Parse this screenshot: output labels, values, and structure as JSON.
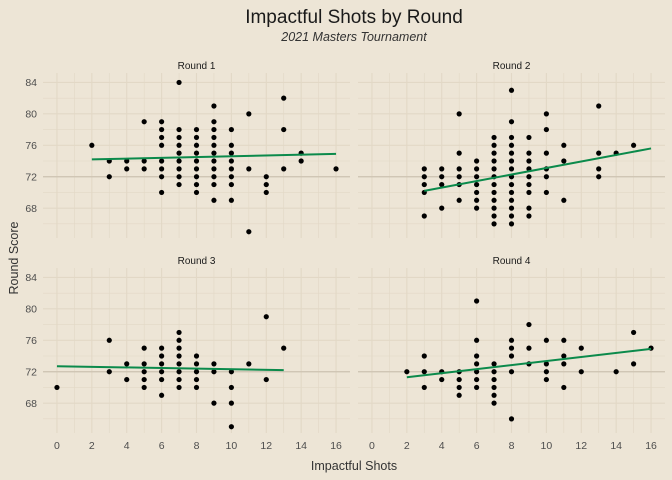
{
  "chart_data": {
    "type": "scatter",
    "title": "Impactful Shots by Round",
    "subtitle": "2021 Masters Tournament",
    "xlabel": "Impactful Shots",
    "ylabel": "Round Score",
    "xlim": [
      -0.8,
      16.8
    ],
    "ylim": [
      64.2,
      85.2
    ],
    "x_ticks": [
      0,
      2,
      4,
      6,
      8,
      10,
      12,
      14,
      16
    ],
    "y_ticks": [
      68,
      72,
      76,
      80,
      84
    ],
    "reference_line_y": 72,
    "grid": true,
    "colors": {
      "background": "#ede5d6",
      "grid": "#e2d8c6",
      "point": "#000000",
      "trend": "#0b8a4b",
      "reference": "#cdc3b2"
    },
    "panels": [
      {
        "name": "Round 1",
        "trend": {
          "x": [
            2,
            16
          ],
          "y": [
            74.2,
            74.9
          ]
        },
        "points": [
          [
            2,
            76
          ],
          [
            3,
            72
          ],
          [
            3,
            74
          ],
          [
            4,
            73
          ],
          [
            4,
            74
          ],
          [
            5,
            79
          ],
          [
            5,
            74
          ],
          [
            5,
            73
          ],
          [
            6,
            79
          ],
          [
            6,
            78
          ],
          [
            6,
            77
          ],
          [
            6,
            76
          ],
          [
            6,
            74
          ],
          [
            6,
            73
          ],
          [
            6,
            72
          ],
          [
            6,
            70
          ],
          [
            7,
            84
          ],
          [
            7,
            78
          ],
          [
            7,
            77
          ],
          [
            7,
            76
          ],
          [
            7,
            75
          ],
          [
            7,
            74
          ],
          [
            7,
            73
          ],
          [
            7,
            72
          ],
          [
            7,
            71
          ],
          [
            8,
            78
          ],
          [
            8,
            77
          ],
          [
            8,
            76
          ],
          [
            8,
            75
          ],
          [
            8,
            74
          ],
          [
            8,
            73
          ],
          [
            8,
            72
          ],
          [
            8,
            71
          ],
          [
            8,
            70
          ],
          [
            9,
            81
          ],
          [
            9,
            79
          ],
          [
            9,
            78
          ],
          [
            9,
            77
          ],
          [
            9,
            76
          ],
          [
            9,
            75
          ],
          [
            9,
            74
          ],
          [
            9,
            73
          ],
          [
            9,
            72
          ],
          [
            9,
            71
          ],
          [
            9,
            69
          ],
          [
            10,
            78
          ],
          [
            10,
            76
          ],
          [
            10,
            75
          ],
          [
            10,
            74
          ],
          [
            10,
            73
          ],
          [
            10,
            72
          ],
          [
            10,
            71
          ],
          [
            10,
            69
          ],
          [
            11,
            80
          ],
          [
            11,
            73
          ],
          [
            11,
            65
          ],
          [
            12,
            72
          ],
          [
            12,
            71
          ],
          [
            12,
            70
          ],
          [
            13,
            82
          ],
          [
            13,
            78
          ],
          [
            13,
            73
          ],
          [
            14,
            75
          ],
          [
            14,
            74
          ],
          [
            16,
            73
          ]
        ]
      },
      {
        "name": "Round 2",
        "trend": {
          "x": [
            3,
            16
          ],
          "y": [
            70.2,
            75.6
          ]
        },
        "points": [
          [
            3,
            73
          ],
          [
            3,
            72
          ],
          [
            3,
            71
          ],
          [
            3,
            70
          ],
          [
            3,
            67
          ],
          [
            4,
            73
          ],
          [
            4,
            72
          ],
          [
            4,
            71
          ],
          [
            4,
            68
          ],
          [
            5,
            80
          ],
          [
            5,
            75
          ],
          [
            5,
            73
          ],
          [
            5,
            72
          ],
          [
            5,
            71
          ],
          [
            5,
            69
          ],
          [
            6,
            74
          ],
          [
            6,
            73
          ],
          [
            6,
            72
          ],
          [
            6,
            71
          ],
          [
            6,
            70
          ],
          [
            6,
            69
          ],
          [
            6,
            68
          ],
          [
            7,
            77
          ],
          [
            7,
            76
          ],
          [
            7,
            75
          ],
          [
            7,
            74
          ],
          [
            7,
            73
          ],
          [
            7,
            72
          ],
          [
            7,
            71
          ],
          [
            7,
            70
          ],
          [
            7,
            69
          ],
          [
            7,
            68
          ],
          [
            7,
            67
          ],
          [
            7,
            66
          ],
          [
            8,
            83
          ],
          [
            8,
            79
          ],
          [
            8,
            77
          ],
          [
            8,
            76
          ],
          [
            8,
            75
          ],
          [
            8,
            74
          ],
          [
            8,
            73
          ],
          [
            8,
            72
          ],
          [
            8,
            71
          ],
          [
            8,
            70
          ],
          [
            8,
            69
          ],
          [
            8,
            68
          ],
          [
            8,
            67
          ],
          [
            8,
            66
          ],
          [
            9,
            77
          ],
          [
            9,
            75
          ],
          [
            9,
            74
          ],
          [
            9,
            73
          ],
          [
            9,
            72
          ],
          [
            9,
            71
          ],
          [
            9,
            70
          ],
          [
            9,
            68
          ],
          [
            9,
            67
          ],
          [
            10,
            80
          ],
          [
            10,
            78
          ],
          [
            10,
            75
          ],
          [
            10,
            73
          ],
          [
            10,
            72
          ],
          [
            10,
            70
          ],
          [
            11,
            76
          ],
          [
            11,
            74
          ],
          [
            11,
            69
          ],
          [
            13,
            81
          ],
          [
            13,
            75
          ],
          [
            13,
            73
          ],
          [
            13,
            72
          ],
          [
            14,
            75
          ],
          [
            15,
            76
          ]
        ]
      },
      {
        "name": "Round 3",
        "trend": {
          "x": [
            0,
            13
          ],
          "y": [
            72.7,
            72.2
          ]
        },
        "points": [
          [
            0,
            70
          ],
          [
            3,
            76
          ],
          [
            3,
            72
          ],
          [
            4,
            73
          ],
          [
            4,
            71
          ],
          [
            5,
            75
          ],
          [
            5,
            73
          ],
          [
            5,
            72
          ],
          [
            5,
            71
          ],
          [
            5,
            70
          ],
          [
            6,
            75
          ],
          [
            6,
            74
          ],
          [
            6,
            73
          ],
          [
            6,
            72
          ],
          [
            6,
            71
          ],
          [
            6,
            69
          ],
          [
            7,
            77
          ],
          [
            7,
            76
          ],
          [
            7,
            75
          ],
          [
            7,
            74
          ],
          [
            7,
            73
          ],
          [
            7,
            72
          ],
          [
            7,
            71
          ],
          [
            7,
            70
          ],
          [
            8,
            74
          ],
          [
            8,
            73
          ],
          [
            8,
            72
          ],
          [
            8,
            71
          ],
          [
            8,
            70
          ],
          [
            9,
            73
          ],
          [
            9,
            72
          ],
          [
            9,
            68
          ],
          [
            10,
            72
          ],
          [
            10,
            70
          ],
          [
            10,
            68
          ],
          [
            10,
            65
          ],
          [
            11,
            73
          ],
          [
            12,
            79
          ],
          [
            12,
            71
          ],
          [
            13,
            75
          ]
        ]
      },
      {
        "name": "Round 4",
        "trend": {
          "x": [
            2,
            16
          ],
          "y": [
            71.3,
            74.9
          ]
        },
        "points": [
          [
            2,
            72
          ],
          [
            3,
            74
          ],
          [
            3,
            72
          ],
          [
            3,
            70
          ],
          [
            4,
            72
          ],
          [
            4,
            71
          ],
          [
            5,
            72
          ],
          [
            5,
            71
          ],
          [
            5,
            70
          ],
          [
            5,
            69
          ],
          [
            6,
            81
          ],
          [
            6,
            76
          ],
          [
            6,
            74
          ],
          [
            6,
            73
          ],
          [
            6,
            72
          ],
          [
            6,
            71
          ],
          [
            6,
            70
          ],
          [
            7,
            73
          ],
          [
            7,
            72
          ],
          [
            7,
            71
          ],
          [
            7,
            70
          ],
          [
            7,
            69
          ],
          [
            7,
            68
          ],
          [
            8,
            76
          ],
          [
            8,
            75
          ],
          [
            8,
            74
          ],
          [
            8,
            72
          ],
          [
            8,
            66
          ],
          [
            9,
            78
          ],
          [
            9,
            75
          ],
          [
            9,
            73
          ],
          [
            10,
            76
          ],
          [
            10,
            73
          ],
          [
            10,
            72
          ],
          [
            10,
            71
          ],
          [
            11,
            76
          ],
          [
            11,
            74
          ],
          [
            11,
            73
          ],
          [
            11,
            70
          ],
          [
            12,
            75
          ],
          [
            12,
            72
          ],
          [
            14,
            72
          ],
          [
            15,
            77
          ],
          [
            15,
            73
          ],
          [
            16,
            75
          ]
        ]
      }
    ]
  }
}
